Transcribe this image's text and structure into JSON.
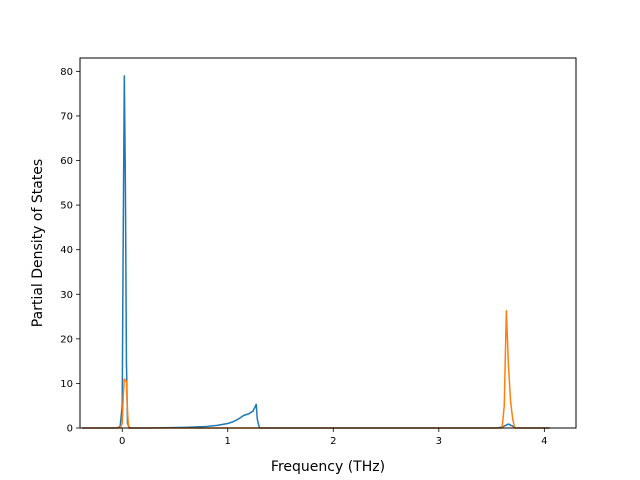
{
  "chart_data": {
    "type": "line",
    "title": "",
    "xlabel": "Frequency (THz)",
    "ylabel": "Partial Density of States",
    "xlim": [
      -0.4,
      4.3
    ],
    "ylim": [
      0,
      83
    ],
    "xticks": [
      0,
      1,
      2,
      3,
      4
    ],
    "yticks": [
      0,
      10,
      20,
      30,
      40,
      50,
      60,
      70,
      80
    ],
    "grid": false,
    "legend": "none",
    "series": [
      {
        "color": "#1f77b4",
        "points": [
          [
            -0.38,
            0
          ],
          [
            -0.05,
            0
          ],
          [
            -0.02,
            0.3
          ],
          [
            0.0,
            5
          ],
          [
            0.01,
            45
          ],
          [
            0.02,
            79
          ],
          [
            0.03,
            55
          ],
          [
            0.04,
            15
          ],
          [
            0.05,
            1
          ],
          [
            0.07,
            0
          ],
          [
            0.2,
            0
          ],
          [
            0.4,
            0.05
          ],
          [
            0.6,
            0.15
          ],
          [
            0.8,
            0.35
          ],
          [
            0.9,
            0.6
          ],
          [
            1.0,
            1.0
          ],
          [
            1.05,
            1.4
          ],
          [
            1.1,
            2.0
          ],
          [
            1.15,
            2.8
          ],
          [
            1.2,
            3.2
          ],
          [
            1.24,
            3.8
          ],
          [
            1.27,
            5.3
          ],
          [
            1.28,
            2.0
          ],
          [
            1.3,
            0
          ],
          [
            3.55,
            0
          ],
          [
            3.6,
            0.2
          ],
          [
            3.66,
            0.9
          ],
          [
            3.7,
            0.4
          ],
          [
            3.73,
            0
          ],
          [
            4.05,
            0
          ]
        ]
      },
      {
        "color": "#ff7f0e",
        "points": [
          [
            -0.38,
            0
          ],
          [
            -0.02,
            0
          ],
          [
            0.0,
            1
          ],
          [
            0.01,
            7
          ],
          [
            0.02,
            11
          ],
          [
            0.04,
            10.5
          ],
          [
            0.05,
            4
          ],
          [
            0.06,
            0
          ],
          [
            0.08,
            0
          ],
          [
            3.6,
            0
          ],
          [
            3.62,
            5
          ],
          [
            3.64,
            26.3
          ],
          [
            3.66,
            14
          ],
          [
            3.68,
            6
          ],
          [
            3.7,
            2
          ],
          [
            3.72,
            0
          ],
          [
            4.05,
            0
          ]
        ]
      }
    ]
  }
}
